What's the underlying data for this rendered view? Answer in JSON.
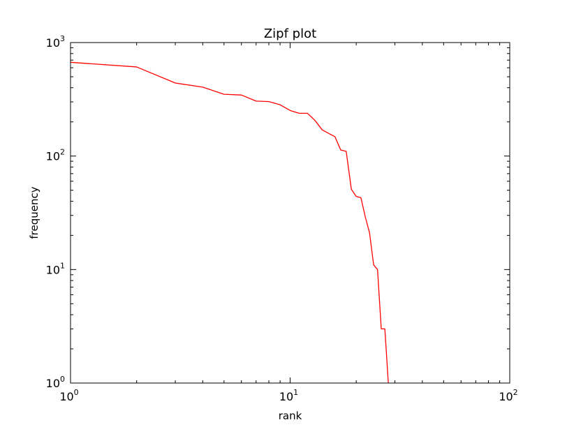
{
  "chart_data": {
    "type": "line",
    "title": "Zipf plot",
    "xlabel": "rank",
    "ylabel": "frequency",
    "xscale": "log",
    "yscale": "log",
    "xlim": [
      1,
      100
    ],
    "ylim": [
      1,
      1000
    ],
    "grid": false,
    "x_ticks": [
      {
        "base": "10",
        "exp": "0"
      },
      {
        "base": "10",
        "exp": "1"
      },
      {
        "base": "10",
        "exp": "2"
      }
    ],
    "y_ticks": [
      {
        "base": "10",
        "exp": "0"
      },
      {
        "base": "10",
        "exp": "1"
      },
      {
        "base": "10",
        "exp": "2"
      },
      {
        "base": "10",
        "exp": "3"
      }
    ],
    "series": [
      {
        "color": "#ff0000",
        "x": [
          1,
          2,
          3,
          4,
          5,
          6,
          7,
          8,
          9,
          10,
          11,
          12,
          13,
          14,
          15,
          16,
          17,
          18,
          19,
          20,
          21,
          22,
          23,
          24,
          25,
          26,
          27,
          28
        ],
        "y": [
          670,
          610,
          440,
          405,
          350,
          345,
          305,
          302,
          283,
          252,
          238,
          238,
          205,
          170,
          158,
          148,
          113,
          110,
          51,
          44,
          43,
          29,
          21,
          11,
          10,
          3,
          3,
          1
        ]
      }
    ]
  }
}
